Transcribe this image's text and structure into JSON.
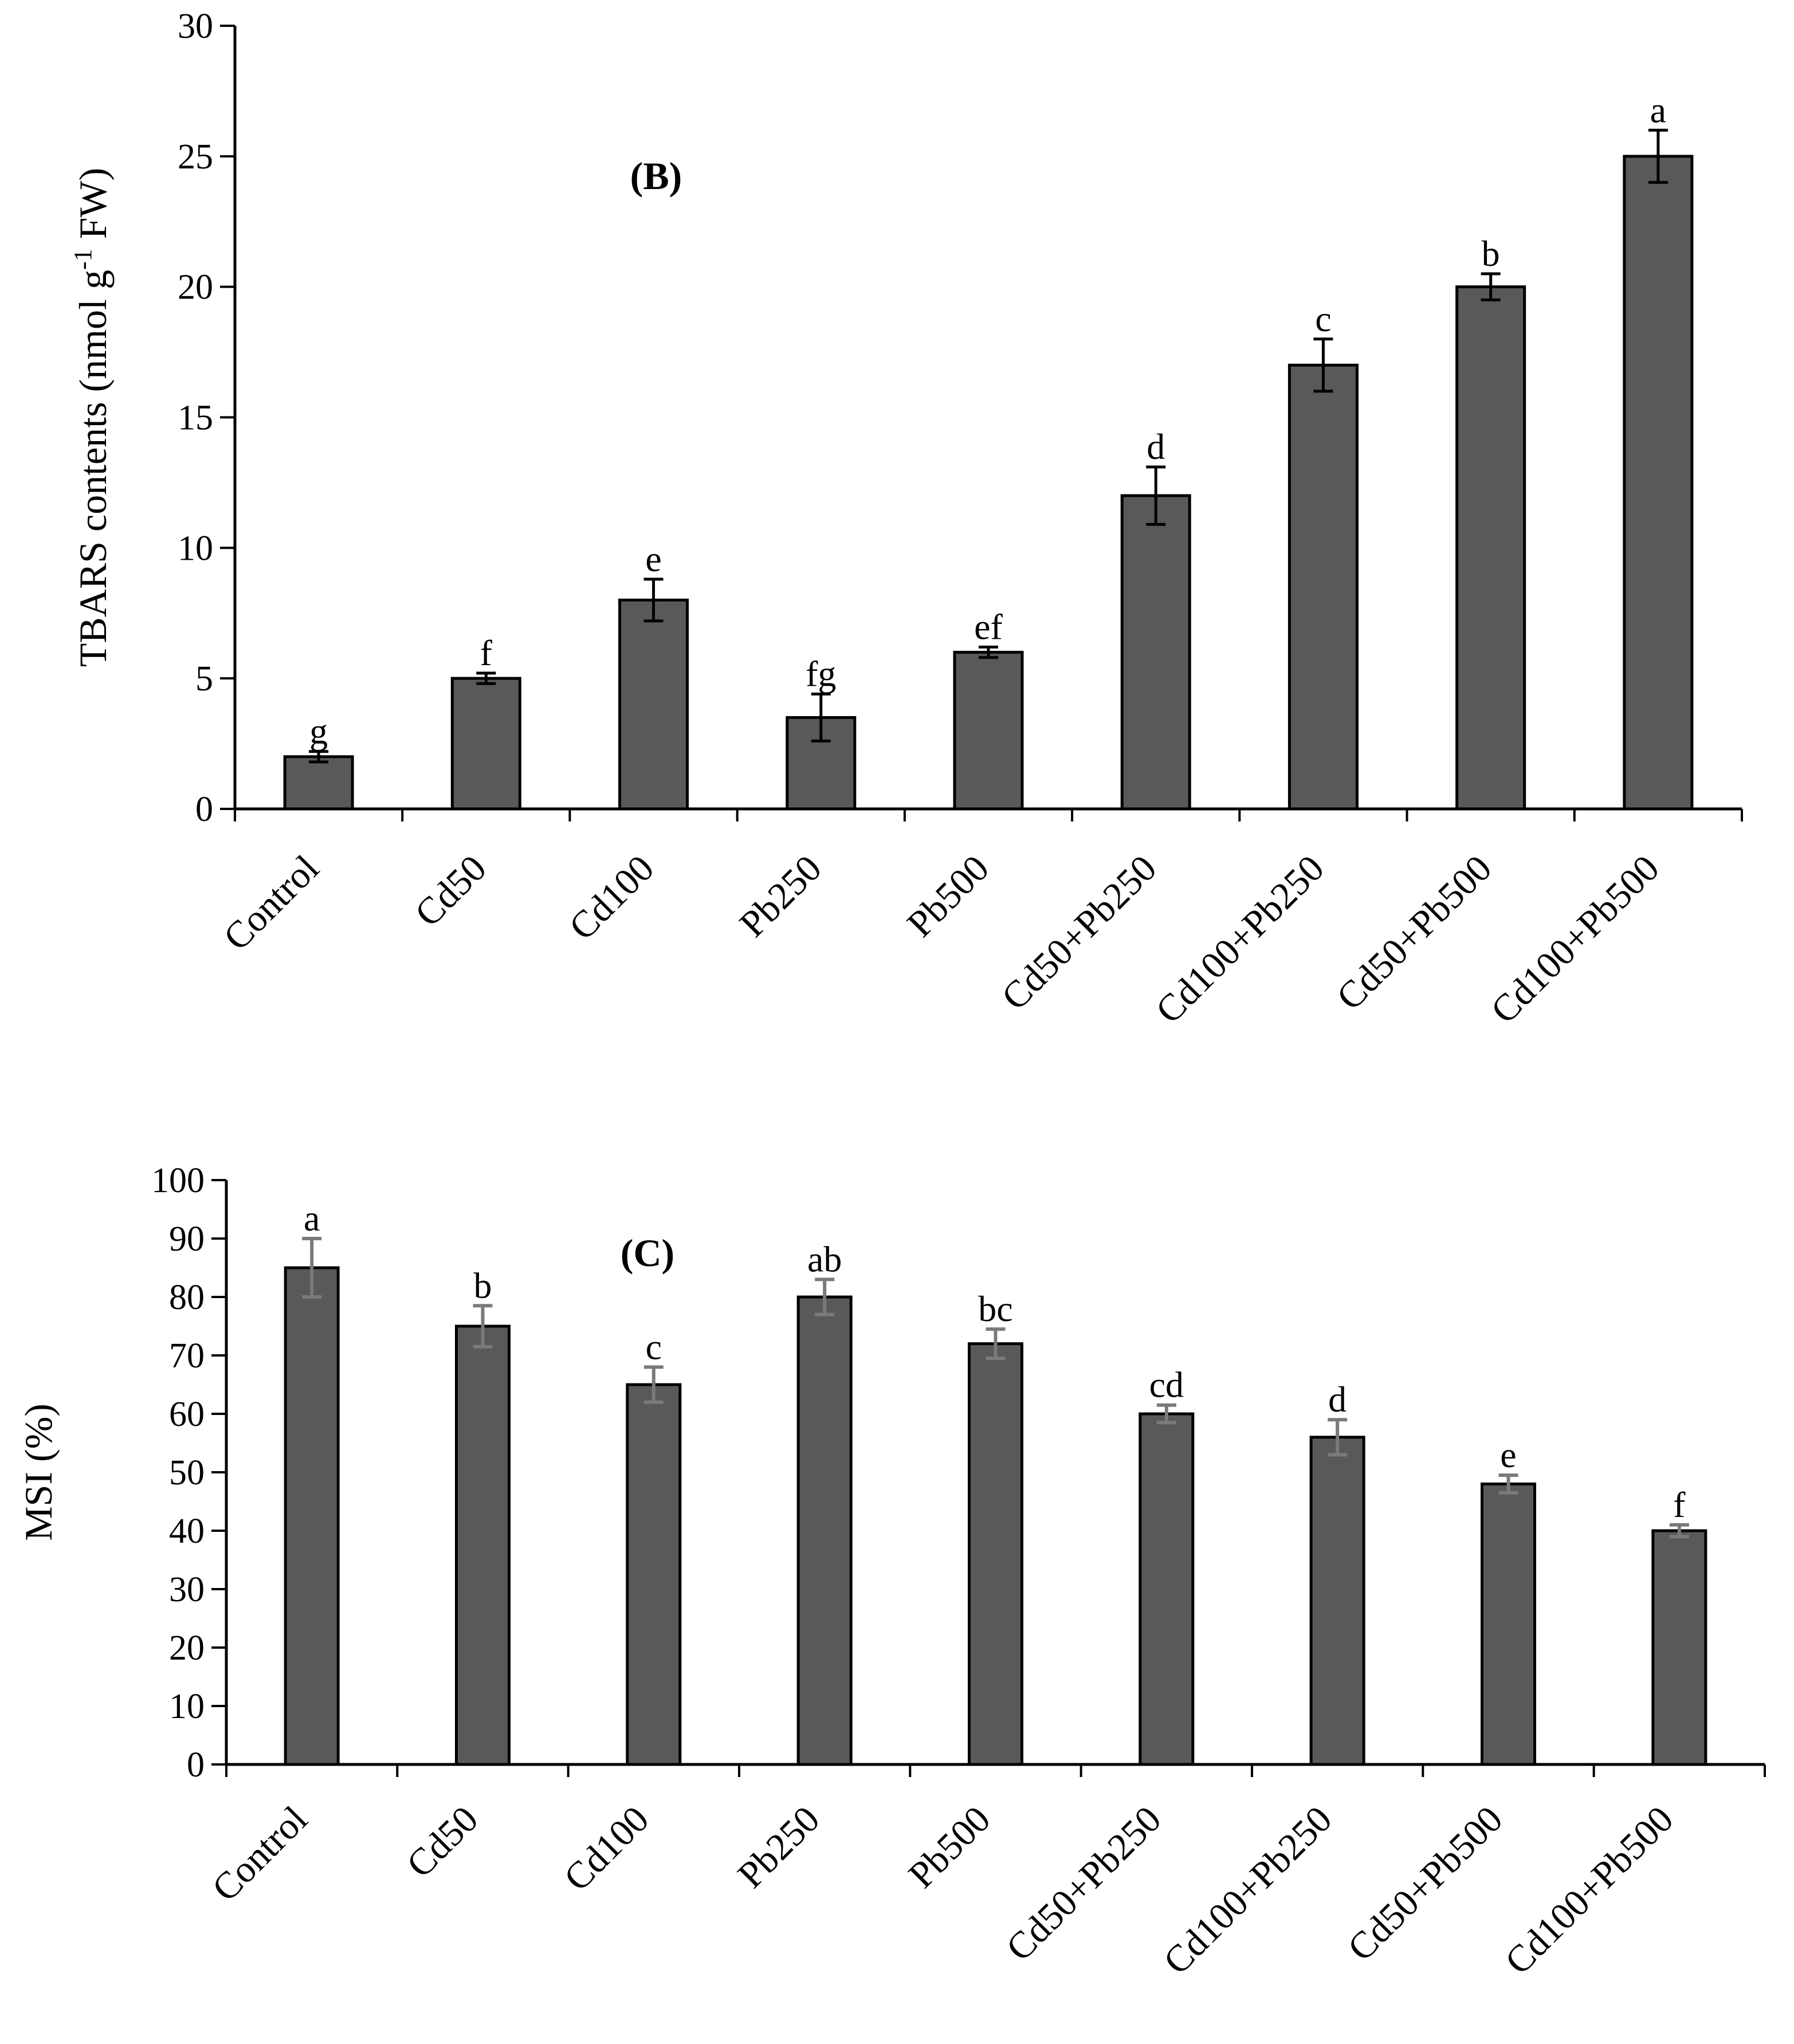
{
  "colors": {
    "bar_fill": "#595959",
    "bar_stroke": "#000000",
    "error_bar_b": "#000000",
    "error_bar_c": "#7a7a7a",
    "axis": "#000000"
  },
  "chart_data": [
    {
      "type": "bar",
      "panel_label": "(B)",
      "ylabel": "TBARS contents (nmol g",
      "ylabel_sup": "-1",
      "ylabel_tail": " FW)",
      "xlabel": "",
      "ylim": [
        0,
        30
      ],
      "yticks": [
        0,
        5,
        10,
        15,
        20,
        25,
        30
      ],
      "grid": false,
      "categories": [
        "Control",
        "Cd50",
        "Cd100",
        "Pb250",
        "Pb500",
        "Cd50+Pb250",
        "Cd100+Pb250",
        "Cd50+Pb500",
        "Cd100+Pb500"
      ],
      "values": [
        2,
        5,
        8,
        3.5,
        6,
        12,
        17,
        20,
        25
      ],
      "errors": [
        0.2,
        0.2,
        0.8,
        0.9,
        0.2,
        1.1,
        1.0,
        0.5,
        1.0
      ],
      "significance_letters": [
        "g",
        "f",
        "e",
        "fg",
        "ef",
        "d",
        "c",
        "b",
        "a"
      ]
    },
    {
      "type": "bar",
      "panel_label": "(C)",
      "ylabel": "MSI (%)",
      "ylabel_sup": "",
      "ylabel_tail": "",
      "xlabel": "",
      "ylim": [
        0,
        100
      ],
      "yticks": [
        0,
        10,
        20,
        30,
        40,
        50,
        60,
        70,
        80,
        90,
        100
      ],
      "grid": false,
      "categories": [
        "Control",
        "Cd50",
        "Cd100",
        "Pb250",
        "Pb500",
        "Cd50+Pb250",
        "Cd100+Pb250",
        "Cd50+Pb500",
        "Cd100+Pb500"
      ],
      "values": [
        85,
        75,
        65,
        80,
        72,
        60,
        56,
        48,
        40
      ],
      "errors": [
        5,
        3.5,
        3,
        3,
        2.5,
        1.5,
        3,
        1.5,
        1
      ],
      "significance_letters": [
        "a",
        "b",
        "c",
        "ab",
        "bc",
        "cd",
        "d",
        "e",
        "f"
      ]
    }
  ]
}
